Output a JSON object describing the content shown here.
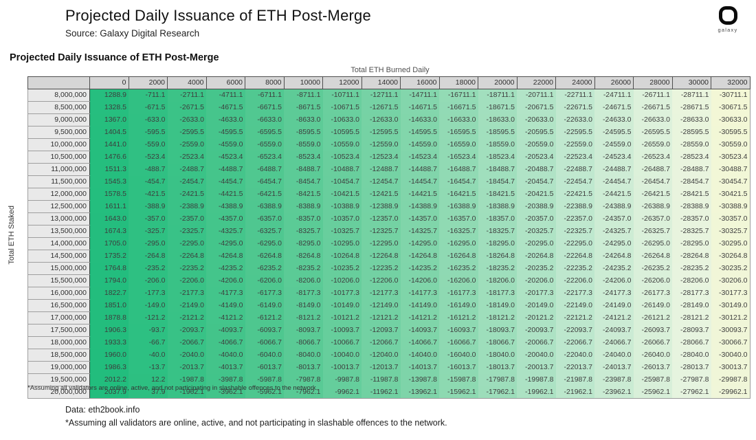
{
  "header": {
    "title": "Projected Daily Issuance of ETH Post-Merge",
    "subtitle": "Source: Galaxy Digital Research",
    "logo_word": "galaxy"
  },
  "section": {
    "table_title": "Projected Daily Issuance of ETH Post-Merge",
    "col_group_label": "Total ETH Burned Daily",
    "row_group_label": "Total ETH Staked",
    "footnote": "*Assuming all validators are online, active, and not participating in slashable offences to the network."
  },
  "footer": {
    "data_source": "Data: eth2book.info",
    "note": "*Assuming all validators are online, active, and not participating in slashable offences to the network."
  },
  "colors": {
    "header_bg": "#d6d6d6",
    "row_header_bg": "#e9e9e9",
    "header_border": "#4d4d4d",
    "cell_text": "#3d3d3d",
    "green_max": "#22bd7d",
    "yellow_min": "#f3f7d6"
  },
  "chart_data": {
    "type": "heatmap",
    "title": "Projected Daily Issuance of ETH Post-Merge",
    "xlabel": "Total ETH Burned Daily",
    "ylabel": "Total ETH Staked",
    "value_format": "1-decimal",
    "columns": [
      0,
      2000,
      4000,
      6000,
      8000,
      10000,
      12000,
      14000,
      16000,
      18000,
      20000,
      22000,
      24000,
      26000,
      28000,
      30000,
      32000
    ],
    "rows": [
      "8,000,000",
      "8,500,000",
      "9,000,000",
      "9,500,000",
      "10,000,000",
      "10,500,000",
      "11,000,000",
      "11,500,000",
      "12,000,000",
      "12,500,000",
      "13,000,000",
      "13,500,000",
      "14,000,000",
      "14,500,000",
      "15,000,000",
      "15,500,000",
      "16,000,000",
      "16,500,000",
      "17,000,000",
      "17,500,000",
      "18,000,000",
      "18,500,000",
      "19,000,000",
      "19,500,000",
      "20,000,000"
    ],
    "values": [
      [
        1288.9,
        -711.1,
        -2711.1,
        -4711.1,
        -6711.1,
        -8711.1,
        -10711.1,
        -12711.1,
        -14711.1,
        -16711.1,
        -18711.1,
        -20711.1,
        -22711.1,
        -24711.1,
        -26711.1,
        -28711.1,
        -30711.1
      ],
      [
        1328.5,
        -671.5,
        -2671.5,
        -4671.5,
        -6671.5,
        -8671.5,
        -10671.5,
        -12671.5,
        -14671.5,
        -16671.5,
        -18671.5,
        -20671.5,
        -22671.5,
        -24671.5,
        -26671.5,
        -28671.5,
        -30671.5
      ],
      [
        1367.0,
        -633.0,
        -2633.0,
        -4633.0,
        -6633.0,
        -8633.0,
        -10633.0,
        -12633.0,
        -14633.0,
        -16633.0,
        -18633.0,
        -20633.0,
        -22633.0,
        -24633.0,
        -26633.0,
        -28633.0,
        -30633.0
      ],
      [
        1404.5,
        -595.5,
        -2595.5,
        -4595.5,
        -6595.5,
        -8595.5,
        -10595.5,
        -12595.5,
        -14595.5,
        -16595.5,
        -18595.5,
        -20595.5,
        -22595.5,
        -24595.5,
        -26595.5,
        -28595.5,
        -30595.5
      ],
      [
        1441.0,
        -559.0,
        -2559.0,
        -4559.0,
        -6559.0,
        -8559.0,
        -10559.0,
        -12559.0,
        -14559.0,
        -16559.0,
        -18559.0,
        -20559.0,
        -22559.0,
        -24559.0,
        -26559.0,
        -28559.0,
        -30559.0
      ],
      [
        1476.6,
        -523.4,
        -2523.4,
        -4523.4,
        -6523.4,
        -8523.4,
        -10523.4,
        -12523.4,
        -14523.4,
        -16523.4,
        -18523.4,
        -20523.4,
        -22523.4,
        -24523.4,
        -26523.4,
        -28523.4,
        -30523.4
      ],
      [
        1511.3,
        -488.7,
        -2488.7,
        -4488.7,
        -6488.7,
        -8488.7,
        -10488.7,
        -12488.7,
        -14488.7,
        -16488.7,
        -18488.7,
        -20488.7,
        -22488.7,
        -24488.7,
        -26488.7,
        -28488.7,
        -30488.7
      ],
      [
        1545.3,
        -454.7,
        -2454.7,
        -4454.7,
        -6454.7,
        -8454.7,
        -10454.7,
        -12454.7,
        -14454.7,
        -16454.7,
        -18454.7,
        -20454.7,
        -22454.7,
        -24454.7,
        -26454.7,
        -28454.7,
        -30454.7
      ],
      [
        1578.5,
        -421.5,
        -2421.5,
        -4421.5,
        -6421.5,
        -8421.5,
        -10421.5,
        -12421.5,
        -14421.5,
        -16421.5,
        -18421.5,
        -20421.5,
        -22421.5,
        -24421.5,
        -26421.5,
        -28421.5,
        -30421.5
      ],
      [
        1611.1,
        -388.9,
        -2388.9,
        -4388.9,
        -6388.9,
        -8388.9,
        -10388.9,
        -12388.9,
        -14388.9,
        -16388.9,
        -18388.9,
        -20388.9,
        -22388.9,
        -24388.9,
        -26388.9,
        -28388.9,
        -30388.9
      ],
      [
        1643.0,
        -357.0,
        -2357.0,
        -4357.0,
        -6357.0,
        -8357.0,
        -10357.0,
        -12357.0,
        -14357.0,
        -16357.0,
        -18357.0,
        -20357.0,
        -22357.0,
        -24357.0,
        -26357.0,
        -28357.0,
        -30357.0
      ],
      [
        1674.3,
        -325.7,
        -2325.7,
        -4325.7,
        -6325.7,
        -8325.7,
        -10325.7,
        -12325.7,
        -14325.7,
        -16325.7,
        -18325.7,
        -20325.7,
        -22325.7,
        -24325.7,
        -26325.7,
        -28325.7,
        -30325.7
      ],
      [
        1705.0,
        -295.0,
        -2295.0,
        -4295.0,
        -6295.0,
        -8295.0,
        -10295.0,
        -12295.0,
        -14295.0,
        -16295.0,
        -18295.0,
        -20295.0,
        -22295.0,
        -24295.0,
        -26295.0,
        -28295.0,
        -30295.0
      ],
      [
        1735.2,
        -264.8,
        -2264.8,
        -4264.8,
        -6264.8,
        -8264.8,
        -10264.8,
        -12264.8,
        -14264.8,
        -16264.8,
        -18264.8,
        -20264.8,
        -22264.8,
        -24264.8,
        -26264.8,
        -28264.8,
        -30264.8
      ],
      [
        1764.8,
        -235.2,
        -2235.2,
        -4235.2,
        -6235.2,
        -8235.2,
        -10235.2,
        -12235.2,
        -14235.2,
        -16235.2,
        -18235.2,
        -20235.2,
        -22235.2,
        -24235.2,
        -26235.2,
        -28235.2,
        -30235.2
      ],
      [
        1794.0,
        -206.0,
        -2206.0,
        -4206.0,
        -6206.0,
        -8206.0,
        -10206.0,
        -12206.0,
        -14206.0,
        -16206.0,
        -18206.0,
        -20206.0,
        -22206.0,
        -24206.0,
        -26206.0,
        -28206.0,
        -30206.0
      ],
      [
        1822.7,
        -177.3,
        -2177.3,
        -4177.3,
        -6177.3,
        -8177.3,
        -10177.3,
        -12177.3,
        -14177.3,
        -16177.3,
        -18177.3,
        -20177.3,
        -22177.3,
        -24177.3,
        -26177.3,
        -28177.3,
        -30177.3
      ],
      [
        1851.0,
        -149.0,
        -2149.0,
        -4149.0,
        -6149.0,
        -8149.0,
        -10149.0,
        -12149.0,
        -14149.0,
        -16149.0,
        -18149.0,
        -20149.0,
        -22149.0,
        -24149.0,
        -26149.0,
        -28149.0,
        -30149.0
      ],
      [
        1878.8,
        -121.2,
        -2121.2,
        -4121.2,
        -6121.2,
        -8121.2,
        -10121.2,
        -12121.2,
        -14121.2,
        -16121.2,
        -18121.2,
        -20121.2,
        -22121.2,
        -24121.2,
        -26121.2,
        -28121.2,
        -30121.2
      ],
      [
        1906.3,
        -93.7,
        -2093.7,
        -4093.7,
        -6093.7,
        -8093.7,
        -10093.7,
        -12093.7,
        -14093.7,
        -16093.7,
        -18093.7,
        -20093.7,
        -22093.7,
        -24093.7,
        -26093.7,
        -28093.7,
        -30093.7
      ],
      [
        1933.3,
        -66.7,
        -2066.7,
        -4066.7,
        -6066.7,
        -8066.7,
        -10066.7,
        -12066.7,
        -14066.7,
        -16066.7,
        -18066.7,
        -20066.7,
        -22066.7,
        -24066.7,
        -26066.7,
        -28066.7,
        -30066.7
      ],
      [
        1960.0,
        -40.0,
        -2040.0,
        -4040.0,
        -6040.0,
        -8040.0,
        -10040.0,
        -12040.0,
        -14040.0,
        -16040.0,
        -18040.0,
        -20040.0,
        -22040.0,
        -24040.0,
        -26040.0,
        -28040.0,
        -30040.0
      ],
      [
        1986.3,
        -13.7,
        -2013.7,
        -4013.7,
        -6013.7,
        -8013.7,
        -10013.7,
        -12013.7,
        -14013.7,
        -16013.7,
        -18013.7,
        -20013.7,
        -22013.7,
        -24013.7,
        -26013.7,
        -28013.7,
        -30013.7
      ],
      [
        2012.2,
        12.2,
        -1987.8,
        -3987.8,
        -5987.8,
        -7987.8,
        -9987.8,
        -11987.8,
        -13987.8,
        -15987.8,
        -17987.8,
        -19987.8,
        -21987.8,
        -23987.8,
        -25987.8,
        -27987.8,
        -29987.8
      ],
      [
        2037.9,
        37.9,
        -1962.1,
        -3962.1,
        -5962.1,
        -7962.1,
        -9962.1,
        -11962.1,
        -13962.1,
        -15962.1,
        -17962.1,
        -19962.1,
        -21962.1,
        -23962.1,
        -25962.1,
        -27962.1,
        -29962.1
      ]
    ],
    "color_scale": {
      "min": -30711.1,
      "max": 2037.9,
      "stops": [
        {
          "t": 0.0,
          "color": "#f3f7d6"
        },
        {
          "t": 0.08,
          "color": "#e7f4df"
        },
        {
          "t": 0.25,
          "color": "#c0e8cf"
        },
        {
          "t": 0.5,
          "color": "#80d5aa"
        },
        {
          "t": 0.75,
          "color": "#4ec78f"
        },
        {
          "t": 1.0,
          "color": "#22bd7d"
        }
      ]
    },
    "legend": "none",
    "grid": "off"
  }
}
